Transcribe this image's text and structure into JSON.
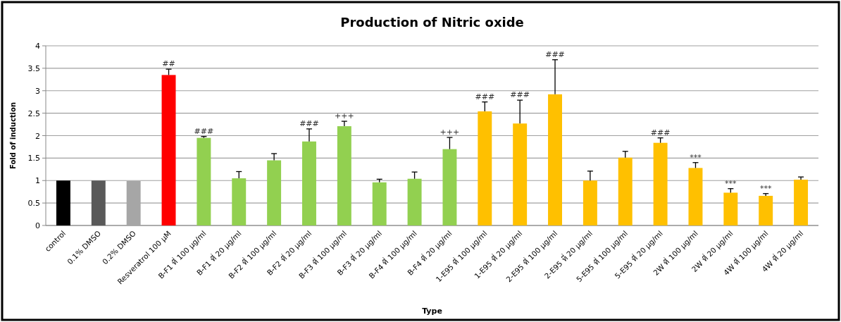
{
  "chart_data": {
    "type": "bar",
    "title": "Production of Nitric oxide",
    "xlabel": "Type",
    "ylabel": "Fold of induction",
    "categories": [
      "control",
      "0.1% DMSO",
      "0.2% DMSO",
      "Resveratrol 100 µM",
      "B-F1 ที่ 100 µg/ml",
      "B-F1 ที่ 20 µg/ml",
      "B-F2 ที่ 100 µg/ml",
      "B-F2 ที่ 20 µg/ml",
      "B-F3 ที่ 100 µg/ml",
      "B-F3 ที่ 20 µg/ml",
      "B-F4 ที่ 100 µg/ml",
      "B-F4 ที่ 20 µg/ml",
      "1-E95 ที่ 100 µg/ml",
      "1-E95 ที่ 20 µg/ml",
      "2-E95 ที่ 100 µg/ml",
      "2-E95 ที่ 20 µg/ml",
      "5-E95 ที่ 100 µg/ml",
      "5-E95 ที่ 20 µg/ml",
      "2W ที่ 100 µg/ml",
      "2W ที่ 20 µg/ml",
      "4W ที่ 100 µg/ml",
      "4W ที่ 20 µg/ml"
    ],
    "values": [
      1.0,
      1.0,
      0.99,
      3.35,
      1.95,
      1.05,
      1.45,
      1.87,
      2.21,
      0.96,
      1.04,
      1.7,
      2.54,
      2.27,
      2.92,
      1.0,
      1.51,
      1.84,
      1.28,
      0.73,
      0.66,
      1.02
    ],
    "errors": [
      null,
      null,
      null,
      [
        3.35,
        3.48
      ],
      [
        1.95,
        1.98
      ],
      [
        1.05,
        1.2
      ],
      [
        1.45,
        1.6
      ],
      [
        1.87,
        2.15
      ],
      [
        2.21,
        2.32
      ],
      [
        0.96,
        1.03
      ],
      [
        1.04,
        1.19
      ],
      [
        1.7,
        1.96
      ],
      [
        2.54,
        2.75
      ],
      [
        2.27,
        2.79
      ],
      [
        2.92,
        3.69
      ],
      [
        1.0,
        1.21
      ],
      [
        1.51,
        1.65
      ],
      [
        1.84,
        1.95
      ],
      [
        1.28,
        1.4
      ],
      [
        0.73,
        0.82
      ],
      [
        0.66,
        0.71
      ],
      [
        1.02,
        1.08
      ]
    ],
    "colors": [
      "#000000",
      "#595959",
      "#a6a6a6",
      "#ff0000",
      "#92d050",
      "#92d050",
      "#92d050",
      "#92d050",
      "#92d050",
      "#92d050",
      "#92d050",
      "#92d050",
      "#ffc000",
      "#ffc000",
      "#ffc000",
      "#ffc000",
      "#ffc000",
      "#ffc000",
      "#ffc000",
      "#ffc000",
      "#ffc000",
      "#ffc000"
    ],
    "ylim": [
      0,
      4
    ],
    "yticks": [
      0,
      0.5,
      1,
      1.5,
      2,
      2.5,
      3,
      3.5,
      4
    ],
    "grid": "y",
    "annotations": [
      {
        "text": "##",
        "x": "Resveratrol 100 µM",
        "y": 3.48
      },
      {
        "text": "###",
        "x": "B-F1 ที่ 100 µg/ml",
        "y": 1.98
      },
      {
        "text": "###",
        "x": "B-F2 ที่ 20 µg/ml",
        "y": 2.15
      },
      {
        "text": "+++",
        "x": "B-F3 ที่ 100 µg/ml",
        "y": 2.32
      },
      {
        "text": "+++",
        "x": "B-F4 ที่ 20 µg/ml",
        "y": 1.96
      },
      {
        "text": "###",
        "x": "1-E95 ที่ 100 µg/ml",
        "y": 2.75
      },
      {
        "text": "###",
        "x": "1-E95 ที่ 20 µg/ml",
        "y": 2.79
      },
      {
        "text": "###",
        "x": "2-E95 ที่ 100 µg/ml",
        "y": 3.69
      },
      {
        "text": "###",
        "x": "5-E95 ที่ 20 µg/ml",
        "y": 1.95
      },
      {
        "text": "***",
        "x": "2W ที่ 100 µg/ml",
        "y": 1.4
      },
      {
        "text": "***",
        "x": "2W ที่ 20 µg/ml",
        "y": 0.82
      },
      {
        "text": "***",
        "x": "4W ที่ 100 µg/ml",
        "y": 0.71
      }
    ]
  }
}
